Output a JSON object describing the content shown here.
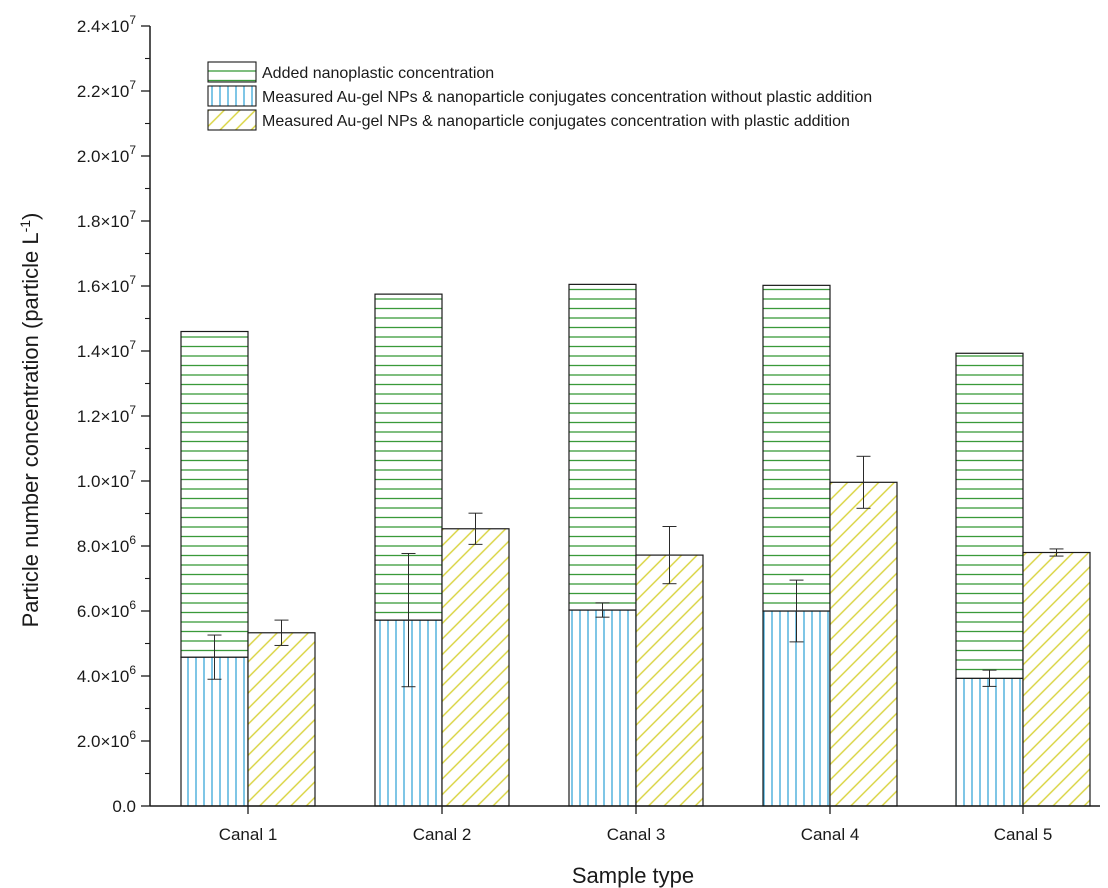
{
  "chart_data": {
    "type": "bar",
    "xlabel": "Sample type",
    "ylabel": "Particle number concentration (particle L",
    "ylabel_sup": "-1",
    "ylabel_close": ")",
    "ylim": [
      0,
      24000000
    ],
    "yticks": [
      {
        "value": 0,
        "mant": "0.0",
        "exp": ""
      },
      {
        "value": 2000000,
        "mant": "2.0×10",
        "exp": "6"
      },
      {
        "value": 4000000,
        "mant": "4.0×10",
        "exp": "6"
      },
      {
        "value": 6000000,
        "mant": "6.0×10",
        "exp": "6"
      },
      {
        "value": 8000000,
        "mant": "8.0×10",
        "exp": "6"
      },
      {
        "value": 10000000,
        "mant": "1.0×10",
        "exp": "7"
      },
      {
        "value": 12000000,
        "mant": "1.2×10",
        "exp": "7"
      },
      {
        "value": 14000000,
        "mant": "1.4×10",
        "exp": "7"
      },
      {
        "value": 16000000,
        "mant": "1.6×10",
        "exp": "7"
      },
      {
        "value": 18000000,
        "mant": "1.8×10",
        "exp": "7"
      },
      {
        "value": 20000000,
        "mant": "2.0×10",
        "exp": "7"
      },
      {
        "value": 22000000,
        "mant": "2.2×10",
        "exp": "7"
      },
      {
        "value": 24000000,
        "mant": "2.4×10",
        "exp": "7"
      }
    ],
    "categories": [
      "Canal 1",
      "Canal 2",
      "Canal 3",
      "Canal 4",
      "Canal 5"
    ],
    "series": [
      {
        "name": "Added nanoplastic concentration",
        "values": [
          14600000,
          15750000,
          16050000,
          16020000,
          13930000
        ],
        "stacked_on": "Measured Au-gel NPs & nanoparticle conjugates concentration without plastic addition",
        "pattern": "horizontal-lines",
        "color": "#3a9a3a"
      },
      {
        "name": "Measured Au-gel NPs & nanoparticle conjugates concentration without plastic addition",
        "values": [
          4580000,
          5720000,
          6030000,
          6000000,
          3930000
        ],
        "errors": [
          680000,
          2050000,
          220000,
          950000,
          250000
        ],
        "pattern": "vertical-lines",
        "color": "#3aa8d8"
      },
      {
        "name": "Measured Au-gel NPs & nanoparticle conjugates concentration with plastic addition",
        "values": [
          5330000,
          8530000,
          7720000,
          9960000,
          7800000
        ],
        "errors": [
          390000,
          480000,
          880000,
          800000,
          110000
        ],
        "pattern": "diagonal-lines",
        "color": "#d8d23a"
      }
    ],
    "legend_position": "top-left",
    "grid": false
  }
}
